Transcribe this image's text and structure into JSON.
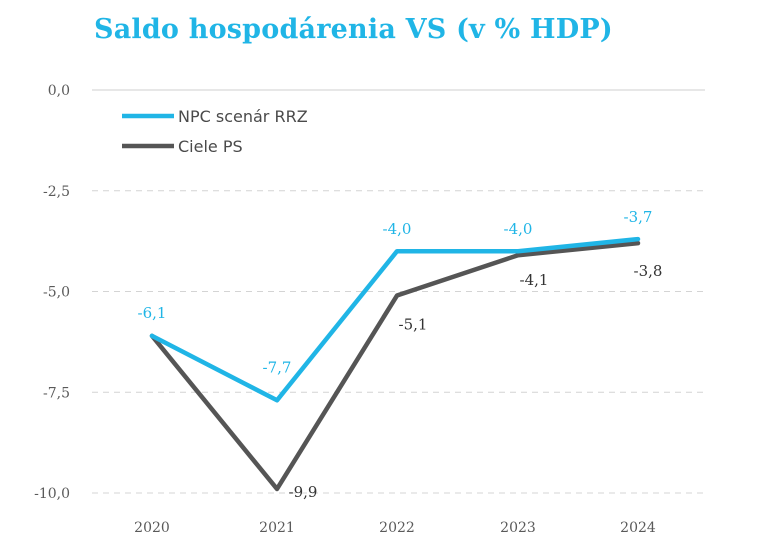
{
  "chart_data": {
    "type": "line",
    "title": "Saldo hospodárenia VS (v % HDP)",
    "categories": [
      "2020",
      "2021",
      "2022",
      "2023",
      "2024"
    ],
    "y_ticks": [
      "0,0",
      "-2,5",
      "-5,0",
      "-7,5",
      "-10,0"
    ],
    "ylim": [
      -10,
      0
    ],
    "grid": true,
    "legend_position": "top-left",
    "series": [
      {
        "name": "NPC scenár RRZ",
        "color": "#20b5e6",
        "values": [
          -6.1,
          -7.7,
          -4.0,
          -4.0,
          -3.7
        ],
        "labels": [
          "-6,1",
          "-7,7",
          "-4,0",
          "-4,0",
          "-3,7"
        ]
      },
      {
        "name": "Ciele PS",
        "color": "#555555",
        "values": [
          -6.1,
          -9.9,
          -5.1,
          -4.1,
          -3.8
        ],
        "labels": [
          "",
          "-9,9",
          "-5,1",
          "-4,1",
          "-3,8"
        ]
      }
    ],
    "title_color": "#20b5e6"
  }
}
